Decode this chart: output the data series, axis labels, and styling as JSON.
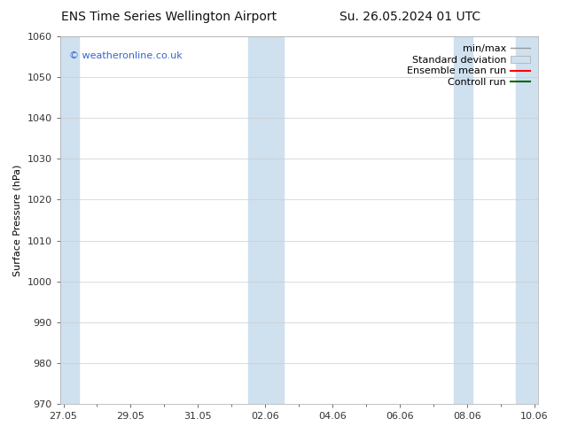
{
  "title_left": "ENS Time Series Wellington Airport",
  "title_right": "Su. 26.05.2024 01 UTC",
  "ylabel": "Surface Pressure (hPa)",
  "ylim": [
    970,
    1060
  ],
  "yticks": [
    970,
    980,
    990,
    1000,
    1010,
    1020,
    1030,
    1040,
    1050,
    1060
  ],
  "xlabel_ticks": [
    "27.05",
    "29.05",
    "31.05",
    "02.06",
    "04.06",
    "06.06",
    "08.06",
    "10.06"
  ],
  "x_tick_positions": [
    0,
    2,
    4,
    6,
    8,
    10,
    12,
    14
  ],
  "shaded_bands": [
    {
      "x_start": -0.1,
      "x_end": 0.45
    },
    {
      "x_start": 5.5,
      "x_end": 6.55
    },
    {
      "x_start": 11.6,
      "x_end": 12.15
    },
    {
      "x_start": 13.45,
      "x_end": 14.1
    }
  ],
  "shade_color": "#cfe0ef",
  "watermark_text": "© weatheronline.co.uk",
  "watermark_color": "#3366cc",
  "background_color": "#ffffff",
  "legend_labels": [
    "min/max",
    "Standard deviation",
    "Ensemble mean run",
    "Controll run"
  ],
  "legend_colors": [
    "#999999",
    "#cfe0ef",
    "#ff0000",
    "#006600"
  ],
  "grid_color": "#cccccc",
  "tick_color": "#333333",
  "spine_color": "#aaaaaa",
  "font_size": 8,
  "title_font_size": 10
}
